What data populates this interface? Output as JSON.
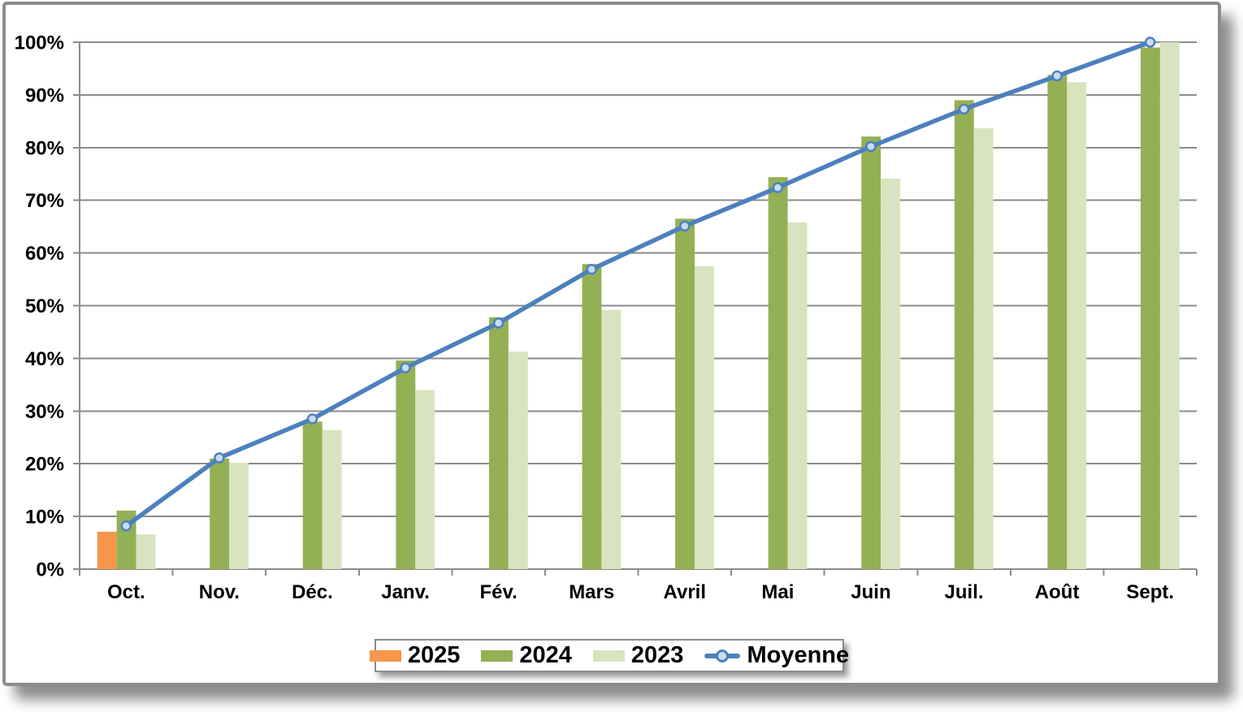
{
  "chart_data": {
    "type": "bar",
    "subtype": "grouped-bars-with-line-overlay",
    "title": "",
    "xlabel": "",
    "ylabel": "",
    "categories": [
      "Oct.",
      "Nov.",
      "Déc.",
      "Janv.",
      "Fév.",
      "Mars",
      "Avril",
      "Mai",
      "Juin",
      "Juil.",
      "Août",
      "Sept."
    ],
    "series": [
      {
        "name": "2025",
        "type": "bar",
        "color": "#F5974A",
        "values": [
          7.1,
          null,
          null,
          null,
          null,
          null,
          null,
          null,
          null,
          null,
          null,
          null
        ]
      },
      {
        "name": "2024",
        "type": "bar",
        "color": "#94B054",
        "values": [
          11.1,
          21.0,
          28.0,
          39.6,
          47.8,
          57.9,
          66.5,
          74.4,
          82.1,
          89.0,
          93.8,
          99.0
        ]
      },
      {
        "name": "2023",
        "type": "bar",
        "color": "#D8E4BF",
        "values": [
          6.6,
          20.2,
          26.4,
          34.0,
          41.3,
          49.2,
          57.5,
          65.8,
          74.1,
          83.7,
          92.4,
          100.0
        ]
      },
      {
        "name": "Moyenne",
        "type": "line",
        "color": "#4C80BD",
        "marker_fill": "#C9DCF3",
        "values": [
          8.2,
          21.1,
          28.5,
          38.2,
          46.7,
          56.9,
          65.1,
          72.4,
          80.2,
          87.3,
          93.6,
          100.0
        ]
      }
    ],
    "ylim": [
      0,
      100
    ],
    "yticks": [
      "0%",
      "10%",
      "20%",
      "30%",
      "40%",
      "50%",
      "60%",
      "70%",
      "80%",
      "90%",
      "100%"
    ],
    "grid": "horizontal",
    "legend_position": "bottom",
    "colors": {
      "axis": "#8B8B8B",
      "text": "#000000",
      "frame_border": "#8C8C8C",
      "background": "#FFFFFF"
    }
  }
}
